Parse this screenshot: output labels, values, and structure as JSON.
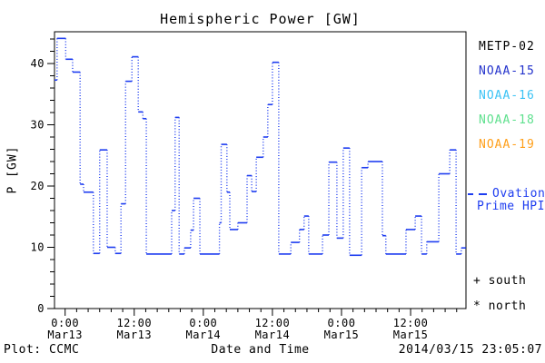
{
  "title": "Hemispheric Power [GW]",
  "footer": {
    "credit": "Plot: CCMC",
    "xlabel": "Date and Time",
    "timestamp": "2014/03/15 23:05:07"
  },
  "legend": {
    "satellites": [
      {
        "label": "METP-02",
        "color": "#000000"
      },
      {
        "label": "NOAA-15",
        "color": "#2433cc"
      },
      {
        "label": "NOAA-16",
        "color": "#3cc3f5"
      },
      {
        "label": "NOAA-18",
        "color": "#5fe08e"
      },
      {
        "label": "NOAA-19",
        "color": "#ff9f1a"
      }
    ],
    "model": {
      "line1": "Ovation",
      "line2": "Prime HPI",
      "color": "#1e3df0"
    },
    "markers": [
      {
        "label": "+ south"
      },
      {
        "label": "* north"
      }
    ]
  },
  "chart_data": {
    "type": "line",
    "style": "step, solid horizontals with dotted vertical connectors",
    "title": "Hemispheric Power [GW]",
    "xlabel": "Date and Time",
    "ylabel": "P [GW]",
    "ylim": [
      0,
      45.2
    ],
    "y_major_ticks": [
      0,
      10,
      20,
      30,
      40
    ],
    "y_minor_step": 2,
    "x_epoch": "2014-03-13 00:00",
    "xlim_hours": [
      -1.85,
      69.6
    ],
    "x_minor_step_hours": 2,
    "xticks": [
      {
        "t": 0,
        "l1": "0:00",
        "l2": "Mar13"
      },
      {
        "t": 12,
        "l1": "12:00",
        "l2": "Mar13"
      },
      {
        "t": 24,
        "l1": "0:00",
        "l2": "Mar14"
      },
      {
        "t": 36,
        "l1": "12:00",
        "l2": "Mar14"
      },
      {
        "t": 48,
        "l1": "0:00",
        "l2": "Mar15"
      },
      {
        "t": 60,
        "l1": "12:00",
        "l2": "Mar15"
      }
    ],
    "grid": false,
    "legend_position": "right margin",
    "series": [
      {
        "name": "Ovation Prime HPI",
        "color": "#1e3df0",
        "units": "GW",
        "points_t_gw": [
          [
            -1.85,
            37.3
          ],
          [
            -1.4,
            44.1
          ],
          [
            0.1,
            40.7
          ],
          [
            1.3,
            38.6
          ],
          [
            2.6,
            20.3
          ],
          [
            3.2,
            19.0
          ],
          [
            4.9,
            9.0
          ],
          [
            6.0,
            25.9
          ],
          [
            7.3,
            10.0
          ],
          [
            8.7,
            9.0
          ],
          [
            9.7,
            17.1
          ],
          [
            10.5,
            37.1
          ],
          [
            11.6,
            41.1
          ],
          [
            12.7,
            32.1
          ],
          [
            13.5,
            31.0
          ],
          [
            14.1,
            8.9
          ],
          [
            18.5,
            16.0
          ],
          [
            19.1,
            31.2
          ],
          [
            19.8,
            8.9
          ],
          [
            20.7,
            9.9
          ],
          [
            21.8,
            12.8
          ],
          [
            22.3,
            18.0
          ],
          [
            23.4,
            8.9
          ],
          [
            26.8,
            14.0
          ],
          [
            27.1,
            26.8
          ],
          [
            28.1,
            19.0
          ],
          [
            28.6,
            12.9
          ],
          [
            30.0,
            14.0
          ],
          [
            31.6,
            21.7
          ],
          [
            32.4,
            19.1
          ],
          [
            33.2,
            24.7
          ],
          [
            34.4,
            28.0
          ],
          [
            35.2,
            33.3
          ],
          [
            36.0,
            40.2
          ],
          [
            37.1,
            8.9
          ],
          [
            39.2,
            10.8
          ],
          [
            40.7,
            12.9
          ],
          [
            41.5,
            15.1
          ],
          [
            42.3,
            8.9
          ],
          [
            44.7,
            12.0
          ],
          [
            45.8,
            23.9
          ],
          [
            47.2,
            11.5
          ],
          [
            48.3,
            26.2
          ],
          [
            49.4,
            8.7
          ],
          [
            51.5,
            23.0
          ],
          [
            52.6,
            24.0
          ],
          [
            55.1,
            11.9
          ],
          [
            55.7,
            8.9
          ],
          [
            59.2,
            12.9
          ],
          [
            60.8,
            15.1
          ],
          [
            61.9,
            8.9
          ],
          [
            62.8,
            10.9
          ],
          [
            64.9,
            22.0
          ],
          [
            66.8,
            25.9
          ],
          [
            67.9,
            8.9
          ],
          [
            68.8,
            9.9
          ]
        ],
        "end_t": 69.6
      }
    ]
  }
}
